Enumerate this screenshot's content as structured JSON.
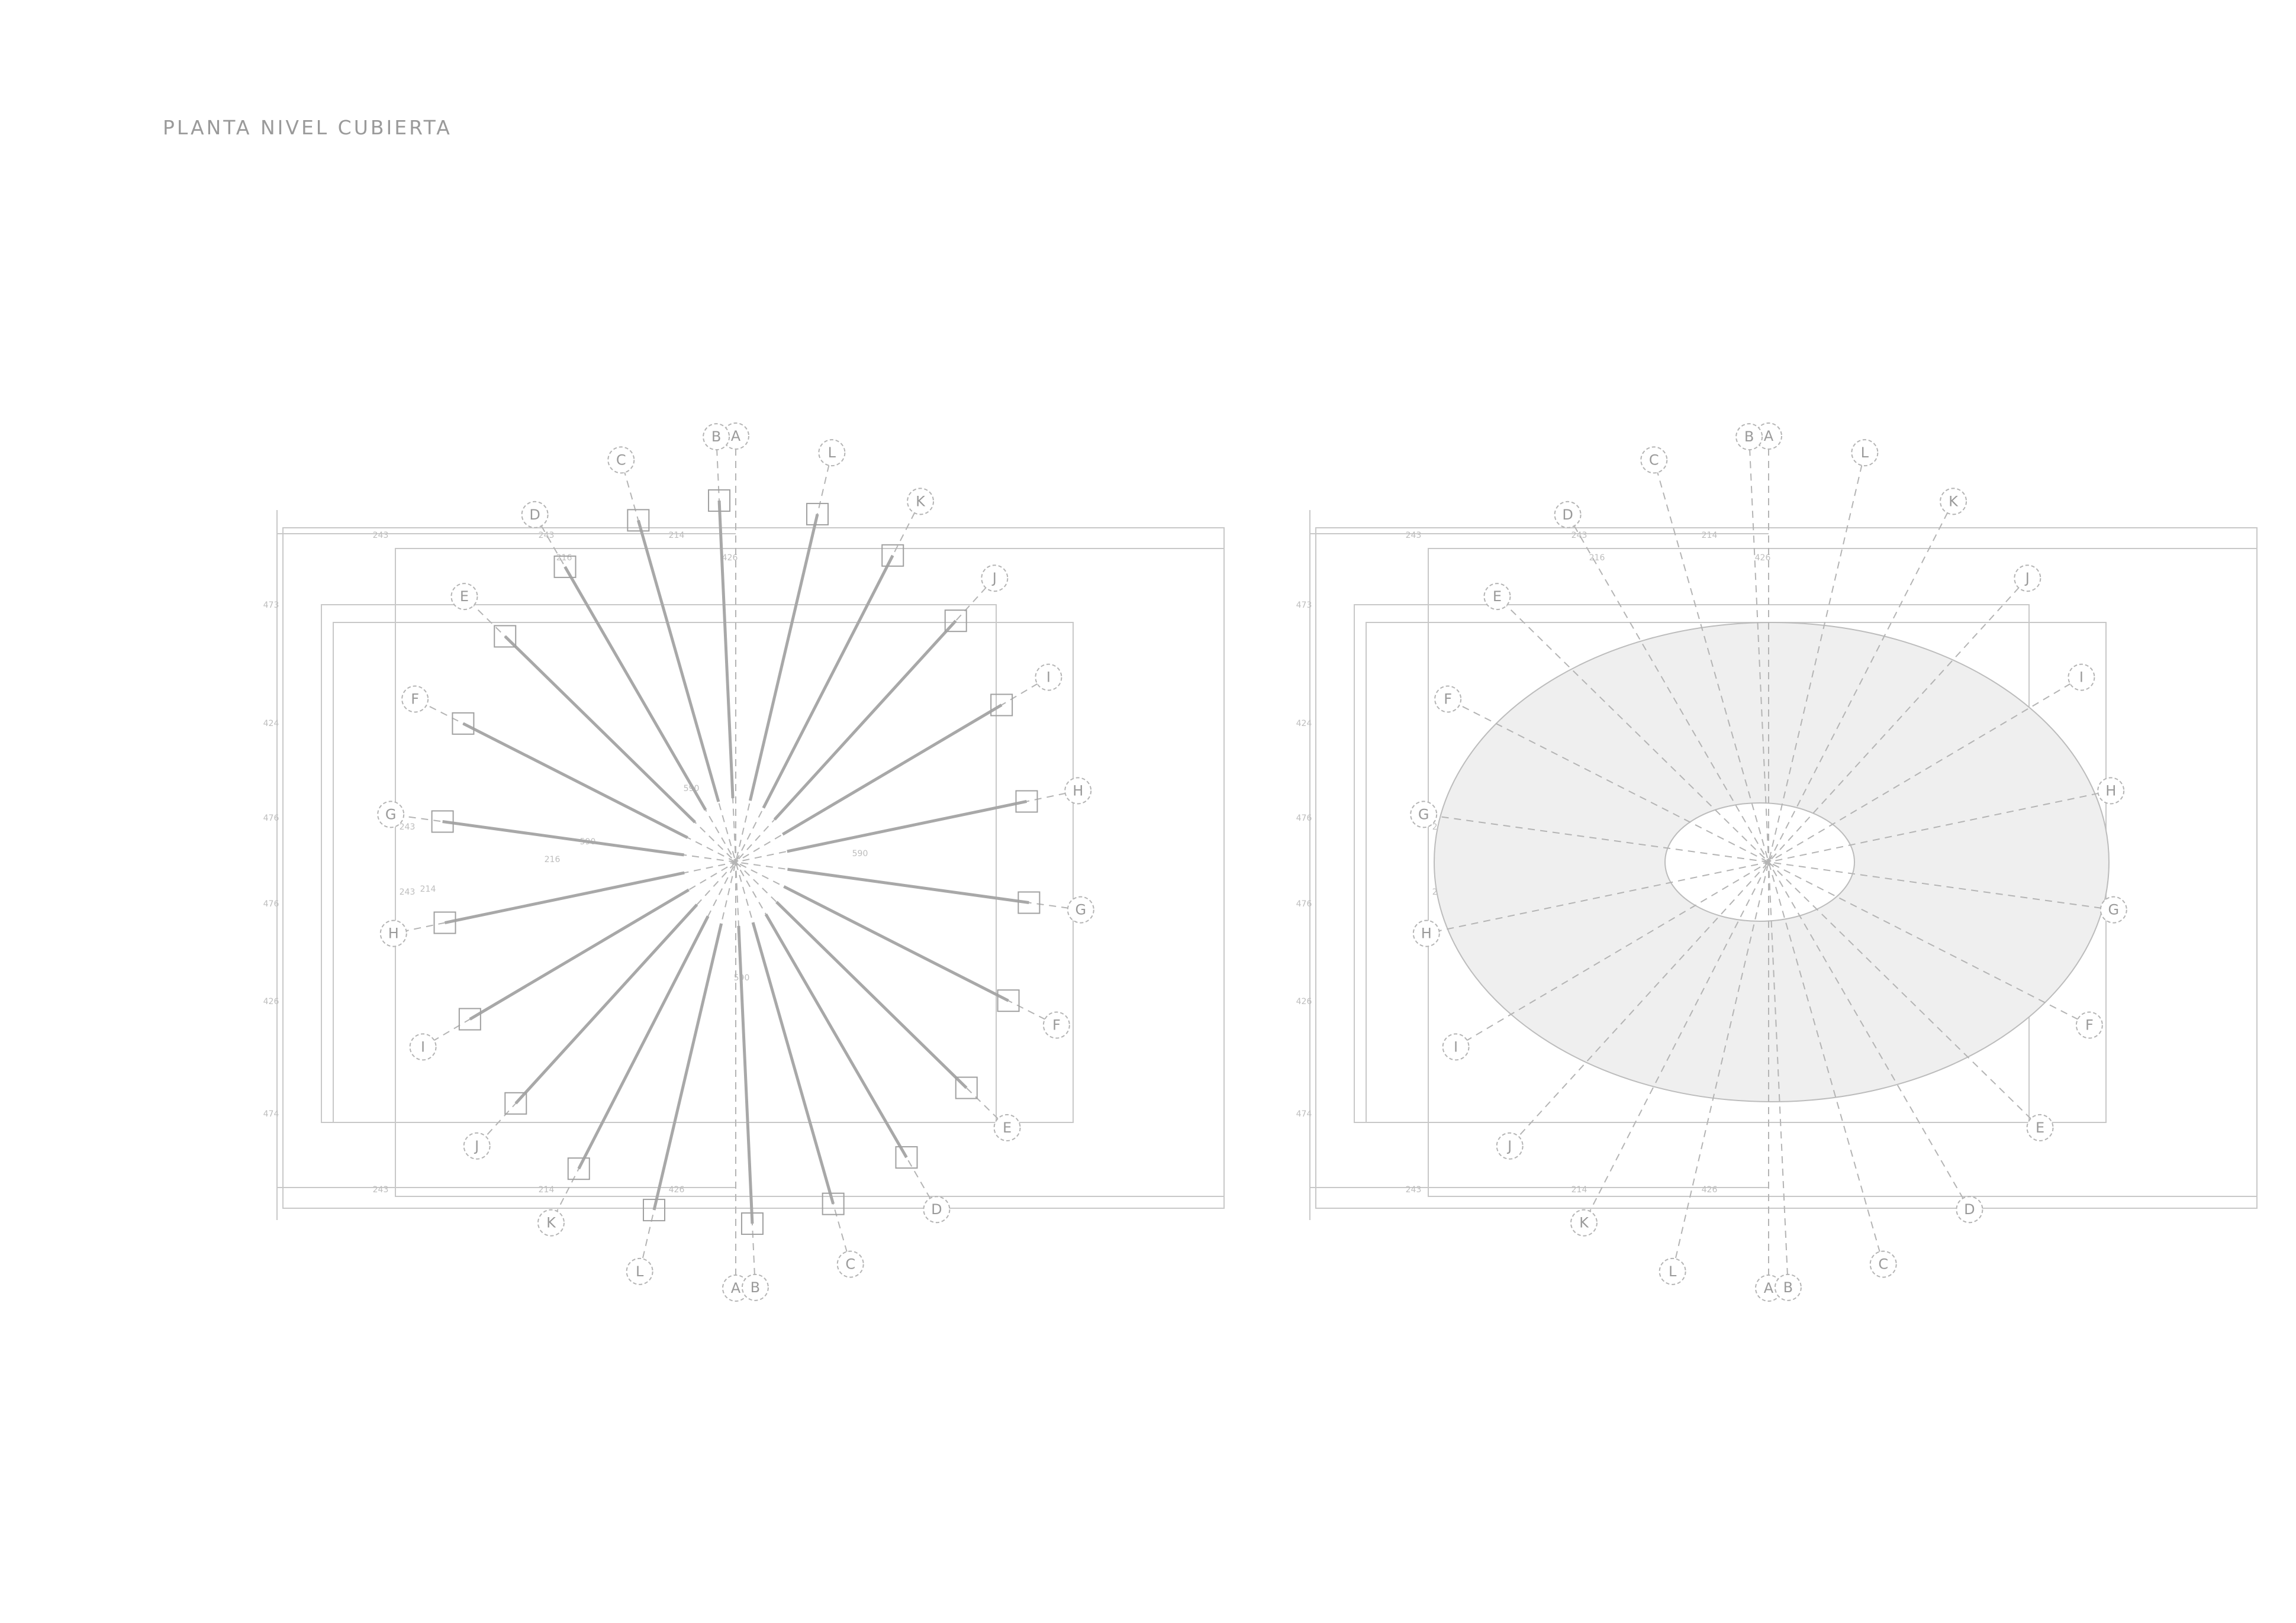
{
  "sheet": {
    "title": "PLANTA NIVEL CUBIERTA"
  },
  "colors": {
    "background": "#ffffff",
    "line": "#c8c8c8",
    "axis": "#b4b4b4",
    "roof_fill": "#efefef",
    "text": "#9a9a9a"
  },
  "plans": [
    {
      "name": "structure",
      "roof_fill": false
    },
    {
      "name": "roof",
      "roof_fill": true
    }
  ],
  "axis_tags_top_right": [
    "A",
    "L",
    "K",
    "J",
    "I",
    "H",
    "G",
    "F",
    "E",
    "D",
    "C",
    "B"
  ],
  "axis_tags_bottom_left": [
    "A",
    "L",
    "K",
    "J",
    "I",
    "H",
    "G",
    "F",
    "E",
    "D",
    "C",
    "B"
  ],
  "dimension_labels": [
    "243",
    "243",
    "214",
    "243",
    "214",
    "426",
    "216",
    "426",
    "473",
    "424",
    "476",
    "476",
    "426",
    "474",
    "216",
    "243",
    "243",
    "214",
    "590",
    "590",
    "590",
    "590"
  ]
}
